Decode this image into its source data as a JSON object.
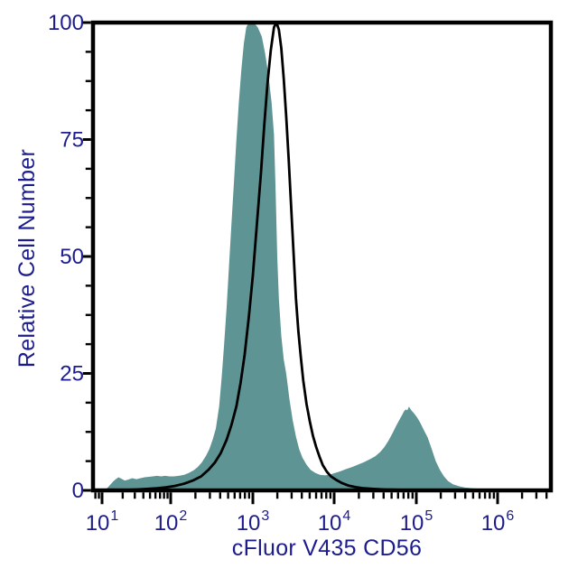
{
  "figure": {
    "background": "#ffffff",
    "frame_color": "#000000",
    "label_color": "#1c1c8c"
  },
  "chart_data": {
    "type": "area",
    "title": "",
    "xlabel": "cFluor V435 CD56",
    "ylabel": "Relative Cell Number",
    "x_scale": "log10",
    "x_tick_base": "10",
    "x_tick_exponents": [
      1,
      2,
      3,
      4,
      5,
      6
    ],
    "x_minor_tick_multiples": [
      2,
      3,
      4,
      5,
      6,
      7,
      8,
      9
    ],
    "xlim_log": [
      0.87,
      6.67
    ],
    "ylim": [
      0,
      100
    ],
    "y_major_ticks": [
      0,
      25,
      50,
      75,
      100
    ],
    "y_minor_step": 6.25,
    "grid": false,
    "legend": null,
    "series": [
      {
        "name": "filled-histogram",
        "style": "filled_area",
        "fill_color": "#5f9494",
        "points_log10x_y": [
          [
            1.07,
            0.4
          ],
          [
            1.12,
            1.2
          ],
          [
            1.16,
            1.9
          ],
          [
            1.2,
            2.4
          ],
          [
            1.24,
            2.8
          ],
          [
            1.28,
            2.5
          ],
          [
            1.33,
            2.1
          ],
          [
            1.38,
            2.3
          ],
          [
            1.44,
            2.6
          ],
          [
            1.5,
            2.4
          ],
          [
            1.56,
            2.6
          ],
          [
            1.62,
            2.8
          ],
          [
            1.68,
            2.9
          ],
          [
            1.74,
            3.0
          ],
          [
            1.8,
            3.1
          ],
          [
            1.86,
            3.0
          ],
          [
            1.92,
            3.1
          ],
          [
            1.98,
            3.0
          ],
          [
            2.04,
            3.0
          ],
          [
            2.1,
            3.1
          ],
          [
            2.16,
            3.3
          ],
          [
            2.22,
            3.7
          ],
          [
            2.28,
            4.3
          ],
          [
            2.33,
            5.0
          ],
          [
            2.38,
            6.0
          ],
          [
            2.43,
            7.4
          ],
          [
            2.47,
            8.8
          ],
          [
            2.51,
            10.8
          ],
          [
            2.55,
            13.2
          ],
          [
            2.59,
            18.0
          ],
          [
            2.62,
            24.0
          ],
          [
            2.65,
            31.0
          ],
          [
            2.68,
            39.0
          ],
          [
            2.71,
            48.0
          ],
          [
            2.74,
            57.0
          ],
          [
            2.77,
            66.0
          ],
          [
            2.8,
            75.0
          ],
          [
            2.83,
            83.0
          ],
          [
            2.86,
            90.0
          ],
          [
            2.89,
            95.5
          ],
          [
            2.92,
            99.0
          ],
          [
            2.95,
            100.0
          ],
          [
            3.01,
            100.0
          ],
          [
            3.06,
            99.0
          ],
          [
            3.11,
            97.0
          ],
          [
            3.15,
            93.5
          ],
          [
            3.19,
            89.0
          ],
          [
            3.23,
            83.0
          ],
          [
            3.26,
            76.0
          ],
          [
            3.28,
            64.0
          ],
          [
            3.3,
            50.0
          ],
          [
            3.32,
            41.0
          ],
          [
            3.35,
            33.0
          ],
          [
            3.38,
            28.0
          ],
          [
            3.41,
            25.0
          ],
          [
            3.45,
            19.5
          ],
          [
            3.49,
            15.0
          ],
          [
            3.53,
            11.5
          ],
          [
            3.57,
            8.8
          ],
          [
            3.61,
            7.0
          ],
          [
            3.66,
            5.5
          ],
          [
            3.71,
            4.4
          ],
          [
            3.77,
            3.7
          ],
          [
            3.83,
            3.3
          ],
          [
            3.89,
            3.2
          ],
          [
            3.95,
            3.4
          ],
          [
            4.01,
            3.7
          ],
          [
            4.08,
            4.1
          ],
          [
            4.15,
            4.6
          ],
          [
            4.22,
            5.0
          ],
          [
            4.29,
            5.5
          ],
          [
            4.36,
            6.0
          ],
          [
            4.43,
            6.6
          ],
          [
            4.5,
            7.3
          ],
          [
            4.56,
            8.2
          ],
          [
            4.61,
            9.2
          ],
          [
            4.66,
            10.6
          ],
          [
            4.71,
            12.2
          ],
          [
            4.76,
            14.0
          ],
          [
            4.81,
            15.6
          ],
          [
            4.83,
            16.2
          ],
          [
            4.85,
            16.9
          ],
          [
            4.87,
            17.3
          ],
          [
            4.89,
            17.1
          ],
          [
            4.91,
            17.9
          ],
          [
            4.94,
            17.1
          ],
          [
            4.97,
            16.5
          ],
          [
            5.01,
            15.6
          ],
          [
            5.05,
            14.4
          ],
          [
            5.09,
            13.0
          ],
          [
            5.14,
            11.3
          ],
          [
            5.19,
            8.8
          ],
          [
            5.24,
            6.2
          ],
          [
            5.29,
            4.4
          ],
          [
            5.34,
            3.0
          ],
          [
            5.39,
            2.0
          ],
          [
            5.45,
            1.3
          ],
          [
            5.52,
            0.9
          ],
          [
            5.6,
            0.6
          ],
          [
            5.7,
            0.45
          ],
          [
            5.82,
            0.3
          ],
          [
            5.95,
            0.22
          ],
          [
            6.1,
            0.15
          ],
          [
            6.3,
            0.1
          ],
          [
            6.55,
            0.07
          ]
        ]
      },
      {
        "name": "open-histogram",
        "style": "open_line",
        "line_color": "#000000",
        "line_width": 2.8,
        "points_log10x_y": [
          [
            1.35,
            0.1
          ],
          [
            1.5,
            0.2
          ],
          [
            1.65,
            0.3
          ],
          [
            1.8,
            0.45
          ],
          [
            1.93,
            0.65
          ],
          [
            2.05,
            0.95
          ],
          [
            2.16,
            1.4
          ],
          [
            2.27,
            2.1
          ],
          [
            2.37,
            3.0
          ],
          [
            2.46,
            4.4
          ],
          [
            2.54,
            6.0
          ],
          [
            2.61,
            8.0
          ],
          [
            2.68,
            10.8
          ],
          [
            2.74,
            14.0
          ],
          [
            2.8,
            18.0
          ],
          [
            2.85,
            23.0
          ],
          [
            2.9,
            29.0
          ],
          [
            2.95,
            37.0
          ],
          [
            3.0,
            46.0
          ],
          [
            3.05,
            57.0
          ],
          [
            3.1,
            68.0
          ],
          [
            3.14,
            78.0
          ],
          [
            3.18,
            87.0
          ],
          [
            3.22,
            94.0
          ],
          [
            3.26,
            99.0
          ],
          [
            3.29,
            100.0
          ],
          [
            3.32,
            98.5
          ],
          [
            3.35,
            94.5
          ],
          [
            3.38,
            88.0
          ],
          [
            3.41,
            80.0
          ],
          [
            3.44,
            71.0
          ],
          [
            3.47,
            61.0
          ],
          [
            3.5,
            51.0
          ],
          [
            3.53,
            41.0
          ],
          [
            3.56,
            34.0
          ],
          [
            3.59,
            28.5
          ],
          [
            3.62,
            23.5
          ],
          [
            3.66,
            18.5
          ],
          [
            3.7,
            14.8
          ],
          [
            3.74,
            11.6
          ],
          [
            3.78,
            9.2
          ],
          [
            3.82,
            7.2
          ],
          [
            3.86,
            5.4
          ],
          [
            3.91,
            4.0
          ],
          [
            3.96,
            3.0
          ],
          [
            4.02,
            2.3
          ],
          [
            4.09,
            1.6
          ],
          [
            4.17,
            1.05
          ],
          [
            4.26,
            0.7
          ],
          [
            4.36,
            0.45
          ],
          [
            4.48,
            0.3
          ],
          [
            4.62,
            0.2
          ],
          [
            4.8,
            0.12
          ],
          [
            5.05,
            0.07
          ]
        ]
      }
    ]
  }
}
